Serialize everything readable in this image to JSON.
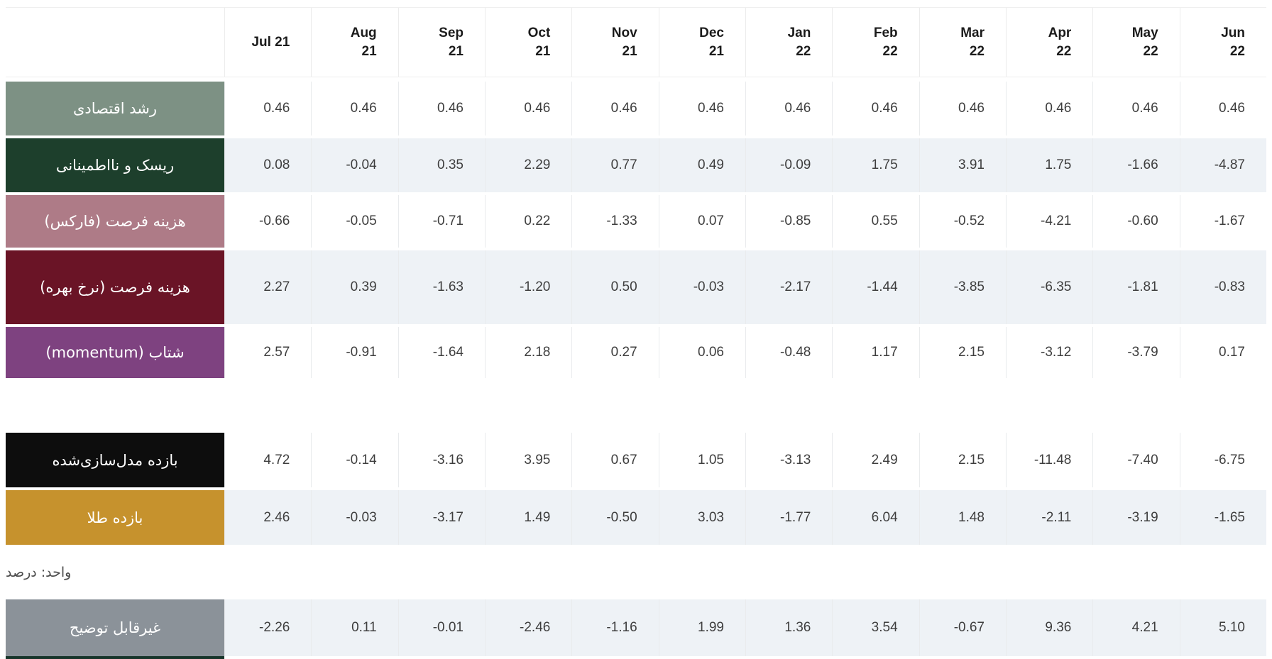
{
  "header": {
    "column_labels_display": [
      "Jul 21",
      "Aug\n21",
      "Sep\n21",
      "Oct\n21",
      "Nov\n21",
      "Dec\n21",
      "Jan\n22",
      "Feb\n22",
      "Mar\n22",
      "Apr\n22",
      "May\n22",
      "Jun\n22"
    ]
  },
  "chart_data": {
    "type": "table",
    "columns": [
      "Jul 21",
      "Aug 21",
      "Sep 21",
      "Oct 21",
      "Nov 21",
      "Dec 21",
      "Jan 22",
      "Feb 22",
      "Mar 22",
      "Apr 22",
      "May 22",
      "Jun 22"
    ],
    "unit_note": "واحد: درصد",
    "factor_rows": [
      {
        "id": "economic-growth",
        "label": "رشد اقتصادی",
        "color": "#7D9184",
        "values": [
          "0.46",
          "0.46",
          "0.46",
          "0.46",
          "0.46",
          "0.46",
          "0.46",
          "0.46",
          "0.46",
          "0.46",
          "0.46",
          "0.46"
        ]
      },
      {
        "id": "risk-uncertainty",
        "label": "ریسک و نااطمینانی",
        "color": "#1D3F2C",
        "values": [
          "0.08",
          "-0.04",
          "0.35",
          "2.29",
          "0.77",
          "0.49",
          "-0.09",
          "1.75",
          "3.91",
          "1.75",
          "-1.66",
          "-4.87"
        ]
      },
      {
        "id": "opportunity-cost-forex",
        "label": "هزینه فرصت (فارکس)",
        "color": "#AE7B87",
        "values": [
          "-0.66",
          "-0.05",
          "-0.71",
          "0.22",
          "-1.33",
          "0.07",
          "-0.85",
          "0.55",
          "-0.52",
          "-4.21",
          "-0.60",
          "-1.67"
        ]
      },
      {
        "id": "opportunity-cost-interest-rate",
        "label": "هزینه فرصت (نرخ بهره)",
        "color": "#6A1426",
        "values": [
          "2.27",
          "0.39",
          "-1.63",
          "-1.20",
          "0.50",
          "-0.03",
          "-2.17",
          "-1.44",
          "-3.85",
          "-6.35",
          "-1.81",
          "-0.83"
        ]
      },
      {
        "id": "momentum",
        "label": "شتاب (momentum)",
        "color": "#7E4280",
        "values": [
          "2.57",
          "-0.91",
          "-1.64",
          "2.18",
          "0.27",
          "0.06",
          "-0.48",
          "1.17",
          "2.15",
          "-3.12",
          "-3.79",
          "0.17"
        ]
      }
    ],
    "result_rows": [
      {
        "id": "modeled-return",
        "label": "بازده مدل‌سازی‌شده",
        "color": "#0D0D0D",
        "values": [
          "4.72",
          "-0.14",
          "-3.16",
          "3.95",
          "0.67",
          "1.05",
          "-3.13",
          "2.49",
          "2.15",
          "-11.48",
          "-7.40",
          "-6.75"
        ]
      },
      {
        "id": "gold-return",
        "label": "بازده طلا",
        "color": "#C6922D",
        "values": [
          "2.46",
          "-0.03",
          "-3.17",
          "1.49",
          "-0.50",
          "3.03",
          "-1.77",
          "6.04",
          "1.48",
          "-2.11",
          "-3.19",
          "-1.65"
        ]
      }
    ],
    "residual_rows": [
      {
        "id": "unexplained",
        "label": "غیرقابل توضیح",
        "color": "#8B9299",
        "values": [
          "-2.26",
          "0.11",
          "-0.01",
          "-2.46",
          "-1.16",
          "1.99",
          "1.36",
          "3.54",
          "-0.67",
          "9.36",
          "4.21",
          "5.10"
        ]
      }
    ],
    "partial_next_row_color": "#17352B"
  }
}
